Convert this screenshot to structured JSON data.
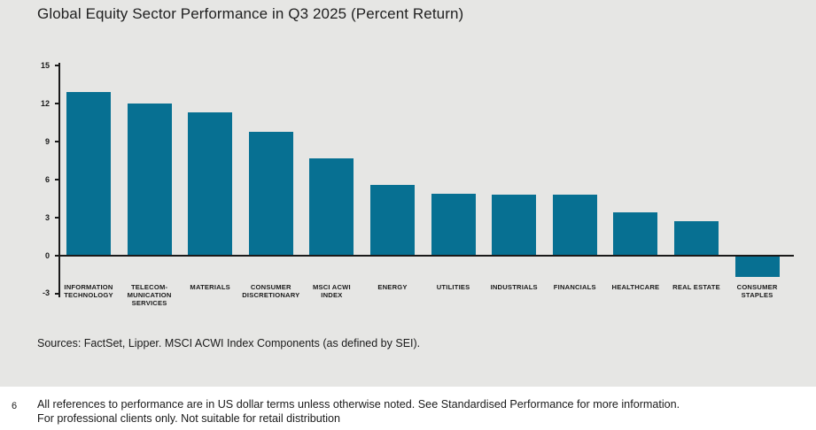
{
  "panel": {
    "background": "#e6e6e4",
    "title": "Global Equity Sector Performance in Q3 2025 (Percent Return)",
    "sources": "Sources: FactSet, Lipper. MSCI ACWI Index Components (as defined by SEI)."
  },
  "chart_data": {
    "type": "bar",
    "title": "Global Equity Sector Performance in Q3 2025 (Percent Return)",
    "categories": [
      "INFORMATION TECHNOLOGY",
      "TELECOM-MUNICATION SERVICES",
      "MATERIALS",
      "CONSUMER DISCRETIONARY",
      "MSCI ACWI INDEX",
      "ENERGY",
      "UTILITIES",
      "INDUSTRIALS",
      "FINANCIALS",
      "HEALTHCARE",
      "REAL ESTATE",
      "CONSUMER STAPLES"
    ],
    "category_lines": [
      [
        "INFORMATION",
        "TECHNOLOGY"
      ],
      [
        "TELECOM-",
        "MUNICATION",
        "SERVICES"
      ],
      [
        "MATERIALS"
      ],
      [
        "CONSUMER",
        "DISCRETIONARY"
      ],
      [
        "MSCI ACWI",
        "INDEX"
      ],
      [
        "ENERGY"
      ],
      [
        "UTILITIES"
      ],
      [
        "INDUSTRIALS"
      ],
      [
        "FINANCIALS"
      ],
      [
        "HEALTHCARE"
      ],
      [
        "REAL ESTATE"
      ],
      [
        "CONSUMER",
        "STAPLES"
      ]
    ],
    "values": [
      12.9,
      12.0,
      11.3,
      9.8,
      7.7,
      5.6,
      4.9,
      4.8,
      4.8,
      3.4,
      2.7,
      -1.7
    ],
    "xlabel": "",
    "ylabel": "",
    "ylim": [
      -3,
      15
    ],
    "yticks": [
      15,
      12,
      9,
      6,
      3,
      0,
      -3
    ],
    "bar_color": "#077092",
    "axis_color": "#1a1a1a",
    "grid": false,
    "legend": null
  },
  "footer": {
    "note_number": "6",
    "line1": "All references to performance are in US dollar terms unless otherwise noted. See Standardised Performance for more information.",
    "line2": "For professional clients only. Not suitable for retail distribution"
  }
}
